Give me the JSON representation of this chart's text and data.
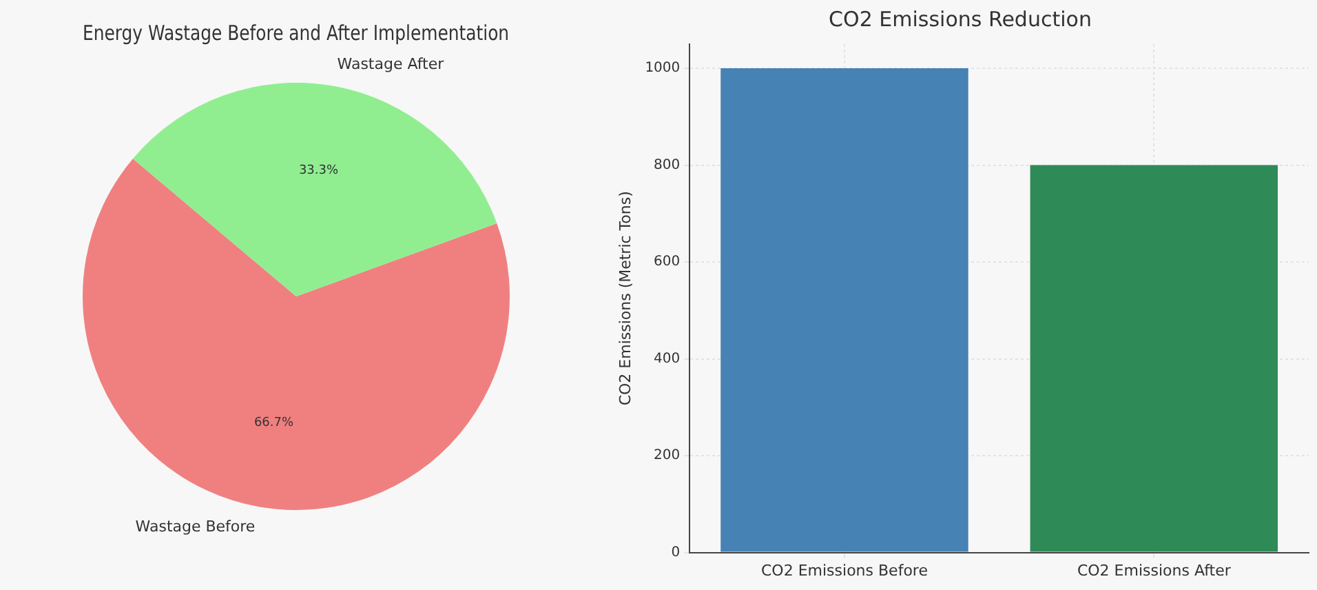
{
  "chart_data": [
    {
      "type": "pie",
      "title": "Energy Wastage Before and After Implementation",
      "categories": [
        "Wastage Before",
        "Wastage After"
      ],
      "values": [
        66.7,
        33.3
      ],
      "colors": [
        "#f08080",
        "#90ee90"
      ],
      "value_labels": [
        "66.7%",
        "33.3%"
      ],
      "legend": false
    },
    {
      "type": "bar",
      "title": "CO2 Emissions Reduction",
      "ylabel": "CO2 Emissions (Metric Tons)",
      "categories": [
        "CO2 Emissions Before",
        "CO2 Emissions After"
      ],
      "values": [
        1000,
        800
      ],
      "colors": [
        "#4682b4",
        "#2e8b57"
      ],
      "ylim": [
        0,
        1050
      ],
      "yticks": [
        0,
        200,
        400,
        600,
        800,
        1000
      ],
      "grid": true,
      "legend": false
    }
  ]
}
